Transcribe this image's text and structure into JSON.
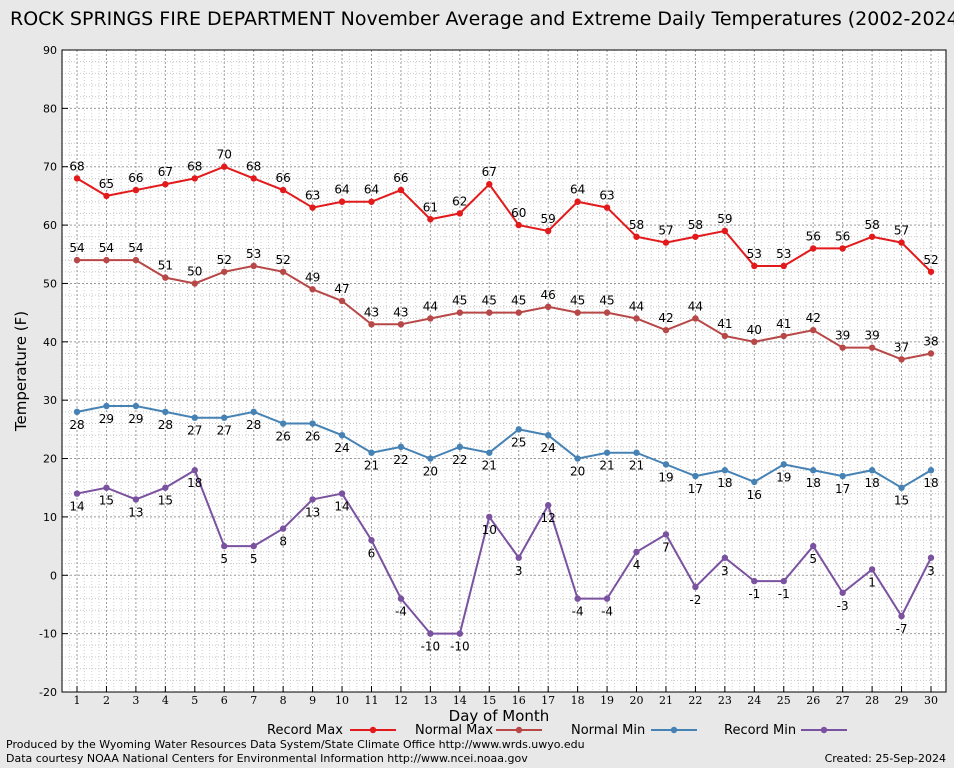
{
  "title": "ROCK SPRINGS FIRE DEPARTMENT November Average and Extreme Daily Temperatures (2002-2024)",
  "footer": {
    "line1": "Produced by the Wyoming Water Resources Data System/State Climate Office http://www.wrds.uwyo.edu",
    "line2": "Data courtesy NOAA National Centers for Environmental Information http://www.ncei.noaa.gov",
    "created": "Created:  25-Sep-2024"
  },
  "colors": {
    "record_max": "#e31a1c",
    "normal_max": "#b84848",
    "normal_min": "#4682b4",
    "record_min": "#7a52a0"
  },
  "chart_data": {
    "type": "line",
    "xlabel": "Day of Month",
    "ylabel": "Temperature (F)",
    "ylim": [
      -20,
      90
    ],
    "xlim": [
      1,
      30
    ],
    "grid": true,
    "legend_position": "bottom",
    "x": [
      1,
      2,
      3,
      4,
      5,
      6,
      7,
      8,
      9,
      10,
      11,
      12,
      13,
      14,
      15,
      16,
      17,
      18,
      19,
      20,
      21,
      22,
      23,
      24,
      25,
      26,
      27,
      28,
      29,
      30
    ],
    "y_ticks": [
      -20,
      -10,
      0,
      10,
      20,
      30,
      40,
      50,
      60,
      70,
      80,
      90
    ],
    "series": [
      {
        "name": "Record Max",
        "values": [
          68,
          65,
          66,
          67,
          68,
          70,
          68,
          66,
          63,
          64,
          64,
          66,
          61,
          62,
          67,
          60,
          59,
          64,
          63,
          58,
          57,
          58,
          59,
          53,
          53,
          56,
          56,
          58,
          57,
          52
        ]
      },
      {
        "name": "Normal Max",
        "values": [
          54,
          54,
          54,
          51,
          50,
          52,
          53,
          52,
          49,
          47,
          43,
          43,
          44,
          45,
          45,
          45,
          46,
          45,
          45,
          44,
          42,
          44,
          41,
          40,
          41,
          42,
          39,
          39,
          37,
          38
        ]
      },
      {
        "name": "Normal Min",
        "values": [
          28,
          29,
          29,
          28,
          27,
          27,
          28,
          26,
          26,
          24,
          21,
          22,
          20,
          22,
          21,
          25,
          24,
          20,
          21,
          21,
          19,
          17,
          18,
          16,
          19,
          18,
          17,
          18,
          15,
          18
        ]
      },
      {
        "name": "Record Min",
        "values": [
          14,
          15,
          13,
          15,
          18,
          5,
          5,
          8,
          13,
          14,
          6,
          -4,
          -10,
          -10,
          10,
          3,
          12,
          -4,
          -4,
          4,
          7,
          -2,
          3,
          -1,
          -1,
          5,
          -3,
          1,
          -7,
          3
        ]
      }
    ]
  }
}
